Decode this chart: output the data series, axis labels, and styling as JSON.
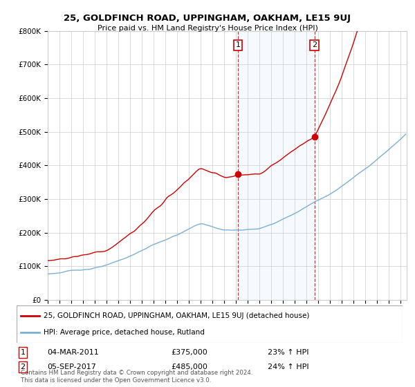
{
  "title": "25, GOLDFINCH ROAD, UPPINGHAM, OAKHAM, LE15 9UJ",
  "subtitle": "Price paid vs. HM Land Registry's House Price Index (HPI)",
  "ylim": [
    0,
    800000
  ],
  "yticks": [
    0,
    100000,
    200000,
    300000,
    400000,
    500000,
    600000,
    700000,
    800000
  ],
  "ytick_labels": [
    "£0",
    "£100K",
    "£200K",
    "£300K",
    "£400K",
    "£500K",
    "£600K",
    "£700K",
    "£800K"
  ],
  "xlim_start": 1995.0,
  "xlim_end": 2025.5,
  "sale1_date": 2011.17,
  "sale1_price": 375000,
  "sale1_label": "04-MAR-2011",
  "sale2_date": 2017.67,
  "sale2_price": 485000,
  "sale2_label": "05-SEP-2017",
  "red_color": "#cc0000",
  "blue_color": "#7bafd4",
  "shade_color": "#ddeeff",
  "legend_line1": "25, GOLDFINCH ROAD, UPPINGHAM, OAKHAM, LE15 9UJ (detached house)",
  "legend_line2": "HPI: Average price, detached house, Rutland",
  "footer": "Contains HM Land Registry data © Crown copyright and database right 2024.\nThis data is licensed under the Open Government Licence v3.0.",
  "background_color": "#ffffff",
  "grid_color": "#cccccc"
}
